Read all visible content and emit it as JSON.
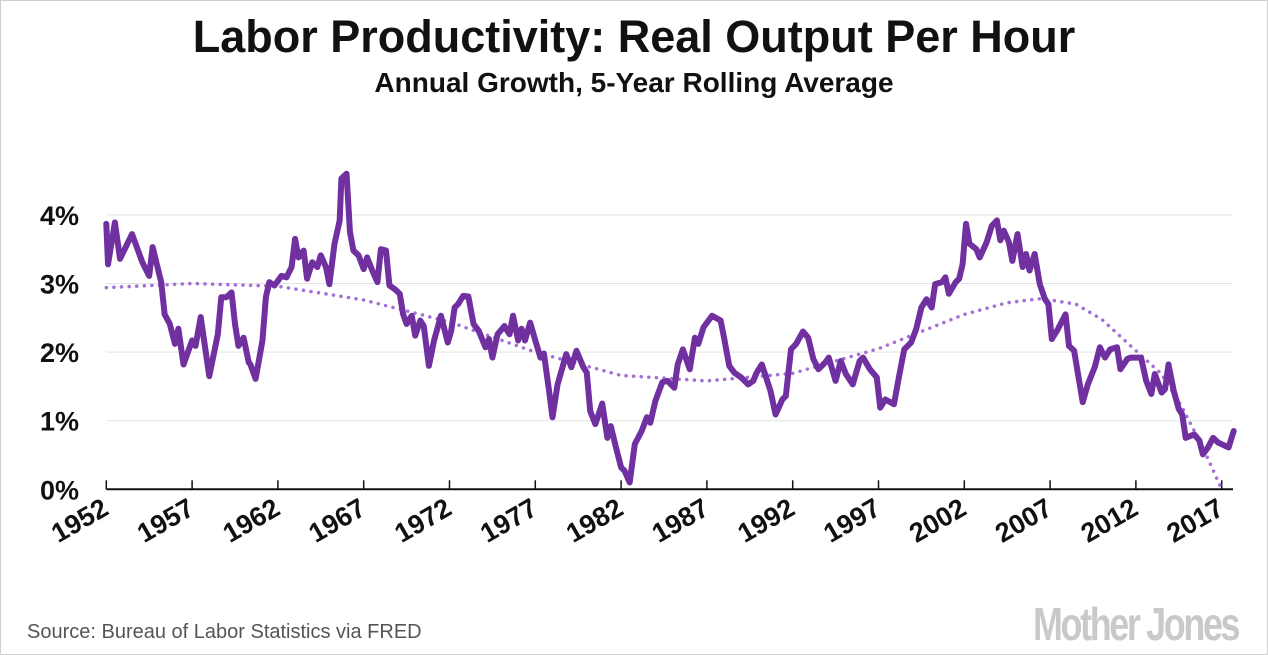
{
  "title": "Labor Productivity: Real Output Per Hour",
  "subtitle": "Annual Growth, 5-Year Rolling Average",
  "source": "Source: Bureau of Labor Statistics via FRED",
  "logo": "Mother Jones",
  "colors": {
    "line": "#7030a0",
    "trend": "#a56fd8",
    "grid": "#e3e3e3",
    "axis": "#111111"
  },
  "chart_data": {
    "type": "line",
    "title": "Labor Productivity: Real Output Per Hour",
    "subtitle": "Annual Growth, 5-Year Rolling Average",
    "xlabel": "",
    "ylabel": "",
    "xlim": [
      1952,
      2017.7
    ],
    "ylim": [
      0,
      4.6
    ],
    "grid": true,
    "x_ticks": [
      "1952",
      "1957",
      "1962",
      "1967",
      "1972",
      "1977",
      "1982",
      "1987",
      "1992",
      "1997",
      "2002",
      "2007",
      "2012",
      "2017"
    ],
    "y_ticks": [
      "0%",
      "1%",
      "2%",
      "3%",
      "4%"
    ],
    "series": [
      {
        "style": "solid",
        "points": [
          [
            1952.0,
            3.87
          ],
          [
            1952.1,
            3.28
          ],
          [
            1952.5,
            3.89
          ],
          [
            1952.8,
            3.36
          ],
          [
            1953.5,
            3.72
          ],
          [
            1954.1,
            3.31
          ],
          [
            1954.5,
            3.11
          ],
          [
            1954.7,
            3.53
          ],
          [
            1955.2,
            3.02
          ],
          [
            1955.4,
            2.55
          ],
          [
            1955.7,
            2.41
          ],
          [
            1956.0,
            2.12
          ],
          [
            1956.2,
            2.34
          ],
          [
            1956.5,
            1.82
          ],
          [
            1957.0,
            2.17
          ],
          [
            1957.2,
            2.09
          ],
          [
            1957.5,
            2.51
          ],
          [
            1958.0,
            1.65
          ],
          [
            1958.5,
            2.26
          ],
          [
            1958.7,
            2.8
          ],
          [
            1959.0,
            2.8
          ],
          [
            1959.3,
            2.87
          ],
          [
            1959.5,
            2.41
          ],
          [
            1959.7,
            2.09
          ],
          [
            1960.0,
            2.21
          ],
          [
            1960.3,
            1.85
          ],
          [
            1960.4,
            1.82
          ],
          [
            1960.7,
            1.61
          ],
          [
            1961.1,
            2.17
          ],
          [
            1961.3,
            2.8
          ],
          [
            1961.5,
            3.02
          ],
          [
            1961.8,
            2.97
          ],
          [
            1962.2,
            3.11
          ],
          [
            1962.5,
            3.09
          ],
          [
            1962.8,
            3.24
          ],
          [
            1963.0,
            3.65
          ],
          [
            1963.2,
            3.38
          ],
          [
            1963.5,
            3.48
          ],
          [
            1963.7,
            3.07
          ],
          [
            1964.0,
            3.31
          ],
          [
            1964.3,
            3.24
          ],
          [
            1964.5,
            3.41
          ],
          [
            1964.8,
            3.24
          ],
          [
            1965.0,
            2.99
          ],
          [
            1965.3,
            3.58
          ],
          [
            1965.6,
            3.92
          ],
          [
            1965.7,
            4.53
          ],
          [
            1966.0,
            4.6
          ],
          [
            1966.2,
            3.75
          ],
          [
            1966.4,
            3.48
          ],
          [
            1966.7,
            3.41
          ],
          [
            1967.0,
            3.21
          ],
          [
            1967.2,
            3.38
          ],
          [
            1967.5,
            3.19
          ],
          [
            1967.8,
            3.02
          ],
          [
            1968.0,
            3.5
          ],
          [
            1968.3,
            3.48
          ],
          [
            1968.5,
            2.97
          ],
          [
            1968.8,
            2.92
          ],
          [
            1969.1,
            2.85
          ],
          [
            1969.3,
            2.55
          ],
          [
            1969.5,
            2.41
          ],
          [
            1969.8,
            2.53
          ],
          [
            1970.0,
            2.24
          ],
          [
            1970.3,
            2.46
          ],
          [
            1970.5,
            2.38
          ],
          [
            1970.8,
            1.8
          ],
          [
            1971.1,
            2.17
          ],
          [
            1971.5,
            2.53
          ],
          [
            1971.9,
            2.14
          ],
          [
            1972.1,
            2.31
          ],
          [
            1972.3,
            2.65
          ],
          [
            1972.5,
            2.7
          ],
          [
            1972.8,
            2.82
          ],
          [
            1973.1,
            2.81
          ],
          [
            1973.4,
            2.41
          ],
          [
            1973.7,
            2.31
          ],
          [
            1974.1,
            2.07
          ],
          [
            1974.3,
            2.19
          ],
          [
            1974.5,
            1.92
          ],
          [
            1974.8,
            2.26
          ],
          [
            1975.2,
            2.38
          ],
          [
            1975.5,
            2.26
          ],
          [
            1975.7,
            2.53
          ],
          [
            1976.0,
            2.17
          ],
          [
            1976.2,
            2.34
          ],
          [
            1976.4,
            2.17
          ],
          [
            1976.7,
            2.43
          ],
          [
            1977.0,
            2.17
          ],
          [
            1977.3,
            1.92
          ],
          [
            1977.5,
            1.98
          ],
          [
            1977.8,
            1.44
          ],
          [
            1978.0,
            1.05
          ],
          [
            1978.3,
            1.53
          ],
          [
            1978.8,
            1.97
          ],
          [
            1979.1,
            1.78
          ],
          [
            1979.4,
            2.02
          ],
          [
            1979.8,
            1.78
          ],
          [
            1980.0,
            1.7
          ],
          [
            1980.2,
            1.14
          ],
          [
            1980.5,
            0.95
          ],
          [
            1980.9,
            1.25
          ],
          [
            1981.2,
            0.75
          ],
          [
            1981.4,
            0.92
          ],
          [
            1981.7,
            0.61
          ],
          [
            1982.0,
            0.32
          ],
          [
            1982.2,
            0.27
          ],
          [
            1982.5,
            0.1
          ],
          [
            1982.8,
            0.66
          ],
          [
            1983.2,
            0.85
          ],
          [
            1983.5,
            1.05
          ],
          [
            1983.7,
            0.97
          ],
          [
            1984.0,
            1.29
          ],
          [
            1984.4,
            1.56
          ],
          [
            1984.7,
            1.58
          ],
          [
            1985.1,
            1.48
          ],
          [
            1985.3,
            1.82
          ],
          [
            1985.6,
            2.04
          ],
          [
            1986.0,
            1.75
          ],
          [
            1986.3,
            2.21
          ],
          [
            1986.5,
            2.12
          ],
          [
            1986.8,
            2.36
          ],
          [
            1987.3,
            2.53
          ],
          [
            1987.8,
            2.46
          ],
          [
            1988.0,
            2.21
          ],
          [
            1988.3,
            1.8
          ],
          [
            1988.6,
            1.7
          ],
          [
            1989.0,
            1.63
          ],
          [
            1989.4,
            1.53
          ],
          [
            1989.7,
            1.58
          ],
          [
            1989.9,
            1.7
          ],
          [
            1990.2,
            1.82
          ],
          [
            1990.7,
            1.44
          ],
          [
            1991.0,
            1.09
          ],
          [
            1991.4,
            1.31
          ],
          [
            1991.6,
            1.36
          ],
          [
            1991.9,
            2.04
          ],
          [
            1992.2,
            2.12
          ],
          [
            1992.6,
            2.3
          ],
          [
            1992.9,
            2.21
          ],
          [
            1993.2,
            1.9
          ],
          [
            1993.5,
            1.75
          ],
          [
            1993.9,
            1.85
          ],
          [
            1994.1,
            1.92
          ],
          [
            1994.5,
            1.58
          ],
          [
            1994.8,
            1.87
          ],
          [
            1995.1,
            1.68
          ],
          [
            1995.5,
            1.53
          ],
          [
            1995.9,
            1.87
          ],
          [
            1996.1,
            1.92
          ],
          [
            1996.5,
            1.75
          ],
          [
            1996.9,
            1.63
          ],
          [
            1997.1,
            1.19
          ],
          [
            1997.4,
            1.31
          ],
          [
            1997.9,
            1.24
          ],
          [
            1998.2,
            1.65
          ],
          [
            1998.5,
            2.04
          ],
          [
            1998.9,
            2.14
          ],
          [
            1999.2,
            2.34
          ],
          [
            1999.5,
            2.65
          ],
          [
            1999.8,
            2.77
          ],
          [
            2000.1,
            2.65
          ],
          [
            2000.3,
            2.99
          ],
          [
            2000.7,
            3.02
          ],
          [
            2000.9,
            3.09
          ],
          [
            2001.1,
            2.85
          ],
          [
            2001.5,
            3.02
          ],
          [
            2001.7,
            3.07
          ],
          [
            2001.9,
            3.28
          ],
          [
            2002.1,
            3.87
          ],
          [
            2002.3,
            3.58
          ],
          [
            2002.7,
            3.5
          ],
          [
            2002.9,
            3.38
          ],
          [
            2003.3,
            3.6
          ],
          [
            2003.6,
            3.84
          ],
          [
            2003.9,
            3.92
          ],
          [
            2004.1,
            3.63
          ],
          [
            2004.3,
            3.77
          ],
          [
            2004.6,
            3.6
          ],
          [
            2004.8,
            3.33
          ],
          [
            2005.1,
            3.72
          ],
          [
            2005.4,
            3.24
          ],
          [
            2005.6,
            3.43
          ],
          [
            2005.8,
            3.19
          ],
          [
            2006.1,
            3.43
          ],
          [
            2006.4,
            2.99
          ],
          [
            2006.7,
            2.77
          ],
          [
            2006.9,
            2.7
          ],
          [
            2007.1,
            2.19
          ],
          [
            2007.4,
            2.31
          ],
          [
            2007.9,
            2.55
          ],
          [
            2008.1,
            2.09
          ],
          [
            2008.4,
            2.02
          ],
          [
            2008.9,
            1.27
          ],
          [
            2009.2,
            1.53
          ],
          [
            2009.6,
            1.78
          ],
          [
            2009.9,
            2.07
          ],
          [
            2010.2,
            1.92
          ],
          [
            2010.5,
            2.04
          ],
          [
            2010.9,
            2.07
          ],
          [
            2011.1,
            1.75
          ],
          [
            2011.5,
            1.9
          ],
          [
            2011.7,
            1.92
          ],
          [
            2012.3,
            1.92
          ],
          [
            2012.6,
            1.58
          ],
          [
            2012.9,
            1.39
          ],
          [
            2013.1,
            1.68
          ],
          [
            2013.5,
            1.41
          ],
          [
            2013.7,
            1.46
          ],
          [
            2013.9,
            1.82
          ],
          [
            2014.2,
            1.44
          ],
          [
            2014.5,
            1.17
          ],
          [
            2014.7,
            1.09
          ],
          [
            2014.9,
            0.75
          ],
          [
            2015.4,
            0.8
          ],
          [
            2015.7,
            0.71
          ],
          [
            2015.9,
            0.51
          ],
          [
            2016.2,
            0.61
          ],
          [
            2016.5,
            0.75
          ],
          [
            2016.8,
            0.68
          ],
          [
            2017.4,
            0.61
          ],
          [
            2017.7,
            0.85
          ]
        ]
      },
      {
        "style": "dotted",
        "points": [
          [
            1952,
            2.94
          ],
          [
            1957,
            3.0
          ],
          [
            1962,
            2.96
          ],
          [
            1967,
            2.76
          ],
          [
            1972,
            2.44
          ],
          [
            1977,
            2.0
          ],
          [
            1982,
            1.66
          ],
          [
            1987,
            1.58
          ],
          [
            1992,
            1.69
          ],
          [
            1997,
            2.05
          ],
          [
            2002,
            2.55
          ],
          [
            2004.5,
            2.72
          ],
          [
            2006.5,
            2.78
          ],
          [
            2008.5,
            2.7
          ],
          [
            2010,
            2.48
          ],
          [
            2012,
            2.02
          ],
          [
            2013.5,
            1.68
          ],
          [
            2014.7,
            1.19
          ],
          [
            2015.9,
            0.61
          ],
          [
            2017,
            0.0
          ]
        ]
      }
    ]
  }
}
